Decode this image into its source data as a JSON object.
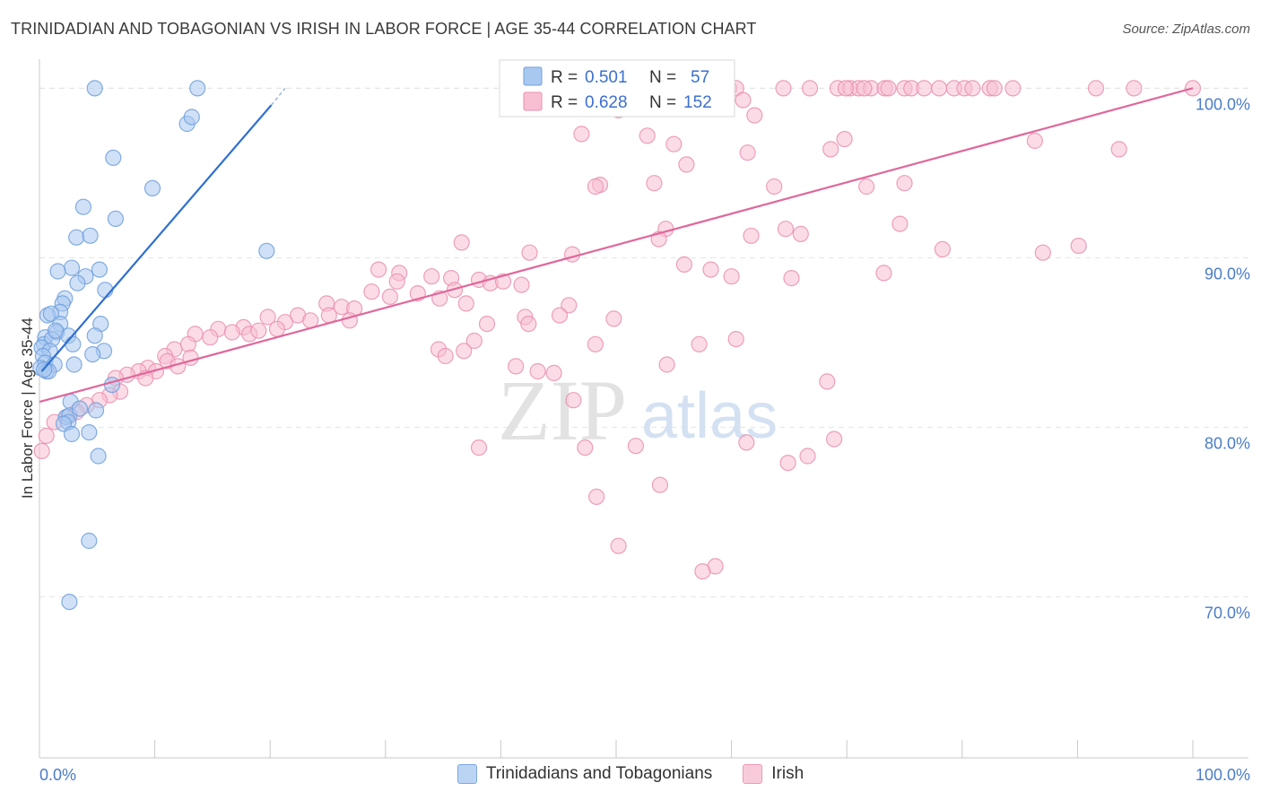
{
  "title": "TRINIDADIAN AND TOBAGONIAN VS IRISH IN LABOR FORCE | AGE 35-44 CORRELATION CHART",
  "source": "Source: ZipAtlas.com",
  "watermark": {
    "zip": "ZIP",
    "atlas": "atlas"
  },
  "legend_top": {
    "r_label": "R =",
    "n_label": "N =",
    "rows": [
      {
        "r": "0.501",
        "n": "57",
        "color": "#a9c8f0",
        "border": "#6f9fdc"
      },
      {
        "r": "0.628",
        "n": "152",
        "color": "#f8bfd2",
        "border": "#ea8fb0"
      }
    ]
  },
  "legend_bottom": [
    {
      "label": "Trinidadians and Tobagonians",
      "color": "#bcd4f4",
      "border": "#7ea8e0"
    },
    {
      "label": "Irish",
      "color": "#f9cbda",
      "border": "#ec9ab8"
    }
  ],
  "chart_data": {
    "type": "scatter",
    "title": "TRINIDADIAN AND TOBAGONIAN VS IRISH IN LABOR FORCE | AGE 35-44 CORRELATION CHART",
    "xlabel": "",
    "ylabel": "In Labor Force | Age 35-44",
    "xlim": [
      0,
      100
    ],
    "ylim": [
      60.5,
      101.5
    ],
    "x_tick_labels": [
      "0.0%",
      "100.0%"
    ],
    "y_ticks": [
      70,
      80,
      90,
      100
    ],
    "y_tick_labels": [
      "70.0%",
      "80.0%",
      "90.0%",
      "100.0%"
    ],
    "grid": true,
    "legend_position": "top-center",
    "series": [
      {
        "name": "Trinidadians and Tobagonians",
        "color": "#6f9fdc",
        "fill": "#a9c8f0",
        "trend_color": "#2f6fd0",
        "trend": [
          [
            0.2,
            83.3
          ],
          [
            20.1,
            99.0
          ]
        ],
        "trend_dashed": [
          [
            20.1,
            99.0
          ],
          [
            21.3,
            100.0
          ]
        ],
        "points": [
          [
            4.8,
            100.0
          ],
          [
            13.7,
            100.0
          ],
          [
            12.8,
            97.9
          ],
          [
            13.2,
            98.3
          ],
          [
            6.4,
            95.9
          ],
          [
            9.8,
            94.1
          ],
          [
            3.8,
            93.0
          ],
          [
            6.6,
            92.3
          ],
          [
            3.2,
            91.2
          ],
          [
            4.4,
            91.3
          ],
          [
            19.7,
            90.4
          ],
          [
            2.8,
            89.4
          ],
          [
            1.6,
            89.2
          ],
          [
            5.2,
            89.3
          ],
          [
            4.0,
            88.9
          ],
          [
            3.3,
            88.5
          ],
          [
            5.7,
            88.1
          ],
          [
            2.2,
            87.6
          ],
          [
            2.0,
            87.3
          ],
          [
            1.8,
            86.8
          ],
          [
            0.7,
            86.6
          ],
          [
            1.0,
            86.7
          ],
          [
            1.8,
            86.1
          ],
          [
            5.3,
            86.1
          ],
          [
            0.5,
            85.3
          ],
          [
            1.5,
            85.6
          ],
          [
            2.5,
            85.4
          ],
          [
            4.8,
            85.4
          ],
          [
            0.4,
            84.9
          ],
          [
            1.1,
            85.2
          ],
          [
            2.9,
            84.9
          ],
          [
            0.2,
            84.7
          ],
          [
            0.9,
            84.5
          ],
          [
            5.6,
            84.5
          ],
          [
            4.6,
            84.3
          ],
          [
            0.3,
            84.2
          ],
          [
            0.5,
            83.8
          ],
          [
            1.3,
            83.7
          ],
          [
            3.0,
            83.7
          ],
          [
            0.1,
            83.5
          ],
          [
            0.6,
            83.3
          ],
          [
            0.8,
            83.3
          ],
          [
            6.3,
            82.5
          ],
          [
            2.7,
            81.5
          ],
          [
            4.9,
            81.0
          ],
          [
            2.3,
            80.6
          ],
          [
            2.6,
            80.7
          ],
          [
            2.5,
            80.3
          ],
          [
            2.1,
            80.2
          ],
          [
            4.3,
            79.7
          ],
          [
            2.8,
            79.6
          ],
          [
            5.1,
            78.3
          ],
          [
            4.3,
            73.3
          ],
          [
            2.6,
            69.7
          ],
          [
            3.5,
            81.1
          ],
          [
            1.4,
            85.7
          ],
          [
            0.4,
            83.4
          ]
        ]
      },
      {
        "name": "Irish",
        "color": "#ea8fb0",
        "fill": "#f8bfd2",
        "trend_color": "#e0679a",
        "trend": [
          [
            0.0,
            81.5
          ],
          [
            100.0,
            100.0
          ]
        ],
        "points": [
          [
            51.6,
            100.0
          ],
          [
            51.3,
            100.0
          ],
          [
            52.0,
            100.0
          ],
          [
            52.6,
            100.0
          ],
          [
            53.6,
            100.0
          ],
          [
            56.0,
            100.0
          ],
          [
            58.0,
            100.0
          ],
          [
            59.8,
            100.0
          ],
          [
            60.4,
            100.0
          ],
          [
            64.5,
            100.0
          ],
          [
            66.8,
            100.0
          ],
          [
            69.2,
            100.0
          ],
          [
            70.3,
            100.0
          ],
          [
            71.0,
            100.0
          ],
          [
            72.1,
            100.0
          ],
          [
            73.3,
            100.0
          ],
          [
            69.9,
            100.0
          ],
          [
            71.5,
            100.0
          ],
          [
            73.6,
            100.0
          ],
          [
            75.0,
            100.0
          ],
          [
            75.6,
            100.0
          ],
          [
            76.7,
            100.0
          ],
          [
            78.0,
            100.0
          ],
          [
            79.3,
            100.0
          ],
          [
            80.2,
            100.0
          ],
          [
            80.9,
            100.0
          ],
          [
            82.4,
            100.0
          ],
          [
            84.4,
            100.0
          ],
          [
            91.6,
            100.0
          ],
          [
            94.9,
            100.0
          ],
          [
            82.8,
            100.0
          ],
          [
            100.0,
            100.0
          ],
          [
            61.0,
            99.3
          ],
          [
            46.1,
            98.8
          ],
          [
            62.0,
            98.4
          ],
          [
            50.2,
            98.7
          ],
          [
            52.7,
            97.2
          ],
          [
            47.0,
            97.3
          ],
          [
            69.8,
            97.0
          ],
          [
            93.6,
            96.4
          ],
          [
            86.3,
            96.9
          ],
          [
            55.0,
            96.7
          ],
          [
            68.6,
            96.4
          ],
          [
            61.4,
            96.2
          ],
          [
            56.1,
            95.5
          ],
          [
            48.6,
            94.3
          ],
          [
            48.2,
            94.2
          ],
          [
            53.3,
            94.4
          ],
          [
            75.0,
            94.4
          ],
          [
            71.7,
            94.2
          ],
          [
            63.7,
            94.2
          ],
          [
            74.6,
            92.0
          ],
          [
            64.7,
            91.7
          ],
          [
            54.3,
            91.7
          ],
          [
            66.0,
            91.4
          ],
          [
            53.7,
            91.1
          ],
          [
            61.7,
            91.3
          ],
          [
            36.6,
            90.9
          ],
          [
            42.5,
            90.3
          ],
          [
            46.2,
            90.2
          ],
          [
            55.9,
            89.6
          ],
          [
            58.2,
            89.3
          ],
          [
            60.0,
            88.9
          ],
          [
            65.2,
            88.8
          ],
          [
            73.2,
            89.1
          ],
          [
            78.3,
            90.5
          ],
          [
            87.0,
            90.3
          ],
          [
            90.1,
            90.7
          ],
          [
            29.4,
            89.3
          ],
          [
            31.2,
            89.1
          ],
          [
            35.7,
            88.8
          ],
          [
            38.1,
            88.7
          ],
          [
            39.1,
            88.5
          ],
          [
            34.0,
            88.9
          ],
          [
            40.2,
            88.6
          ],
          [
            41.8,
            88.4
          ],
          [
            28.8,
            88.0
          ],
          [
            31.0,
            88.6
          ],
          [
            30.4,
            87.7
          ],
          [
            32.8,
            87.9
          ],
          [
            34.7,
            87.6
          ],
          [
            36.0,
            88.1
          ],
          [
            37.0,
            87.3
          ],
          [
            24.9,
            87.3
          ],
          [
            26.2,
            87.1
          ],
          [
            27.3,
            87.0
          ],
          [
            22.4,
            86.6
          ],
          [
            23.5,
            86.3
          ],
          [
            25.1,
            86.6
          ],
          [
            26.9,
            86.3
          ],
          [
            19.8,
            86.5
          ],
          [
            21.3,
            86.2
          ],
          [
            17.7,
            85.9
          ],
          [
            15.5,
            85.8
          ],
          [
            16.7,
            85.6
          ],
          [
            18.2,
            85.5
          ],
          [
            19.0,
            85.7
          ],
          [
            20.6,
            85.8
          ],
          [
            13.5,
            85.5
          ],
          [
            14.8,
            85.3
          ],
          [
            12.9,
            84.9
          ],
          [
            11.7,
            84.6
          ],
          [
            13.1,
            84.1
          ],
          [
            10.9,
            84.2
          ],
          [
            11.1,
            83.9
          ],
          [
            12.0,
            83.6
          ],
          [
            9.4,
            83.5
          ],
          [
            10.1,
            83.3
          ],
          [
            8.6,
            83.3
          ],
          [
            9.2,
            82.9
          ],
          [
            7.6,
            83.1
          ],
          [
            6.6,
            82.9
          ],
          [
            7.0,
            82.1
          ],
          [
            6.1,
            81.9
          ],
          [
            5.2,
            81.6
          ],
          [
            4.1,
            81.3
          ],
          [
            3.2,
            80.9
          ],
          [
            2.4,
            80.6
          ],
          [
            1.3,
            80.3
          ],
          [
            0.6,
            79.5
          ],
          [
            0.2,
            78.6
          ],
          [
            42.1,
            86.5
          ],
          [
            45.9,
            87.2
          ],
          [
            42.4,
            86.1
          ],
          [
            45.1,
            86.6
          ],
          [
            38.8,
            86.1
          ],
          [
            49.8,
            86.4
          ],
          [
            37.7,
            85.1
          ],
          [
            34.6,
            84.6
          ],
          [
            35.2,
            84.2
          ],
          [
            41.3,
            83.6
          ],
          [
            43.2,
            83.3
          ],
          [
            48.2,
            84.9
          ],
          [
            57.2,
            84.9
          ],
          [
            60.4,
            85.2
          ],
          [
            54.4,
            83.7
          ],
          [
            68.3,
            82.7
          ],
          [
            61.3,
            79.1
          ],
          [
            51.7,
            78.9
          ],
          [
            66.6,
            78.3
          ],
          [
            64.9,
            77.9
          ],
          [
            53.8,
            76.6
          ],
          [
            47.3,
            78.8
          ],
          [
            68.9,
            79.3
          ],
          [
            48.3,
            75.9
          ],
          [
            38.1,
            78.8
          ],
          [
            50.2,
            73.0
          ],
          [
            58.6,
            71.8
          ],
          [
            57.5,
            71.5
          ],
          [
            36.8,
            84.5
          ],
          [
            46.3,
            81.6
          ],
          [
            44.6,
            83.2
          ]
        ]
      }
    ]
  }
}
